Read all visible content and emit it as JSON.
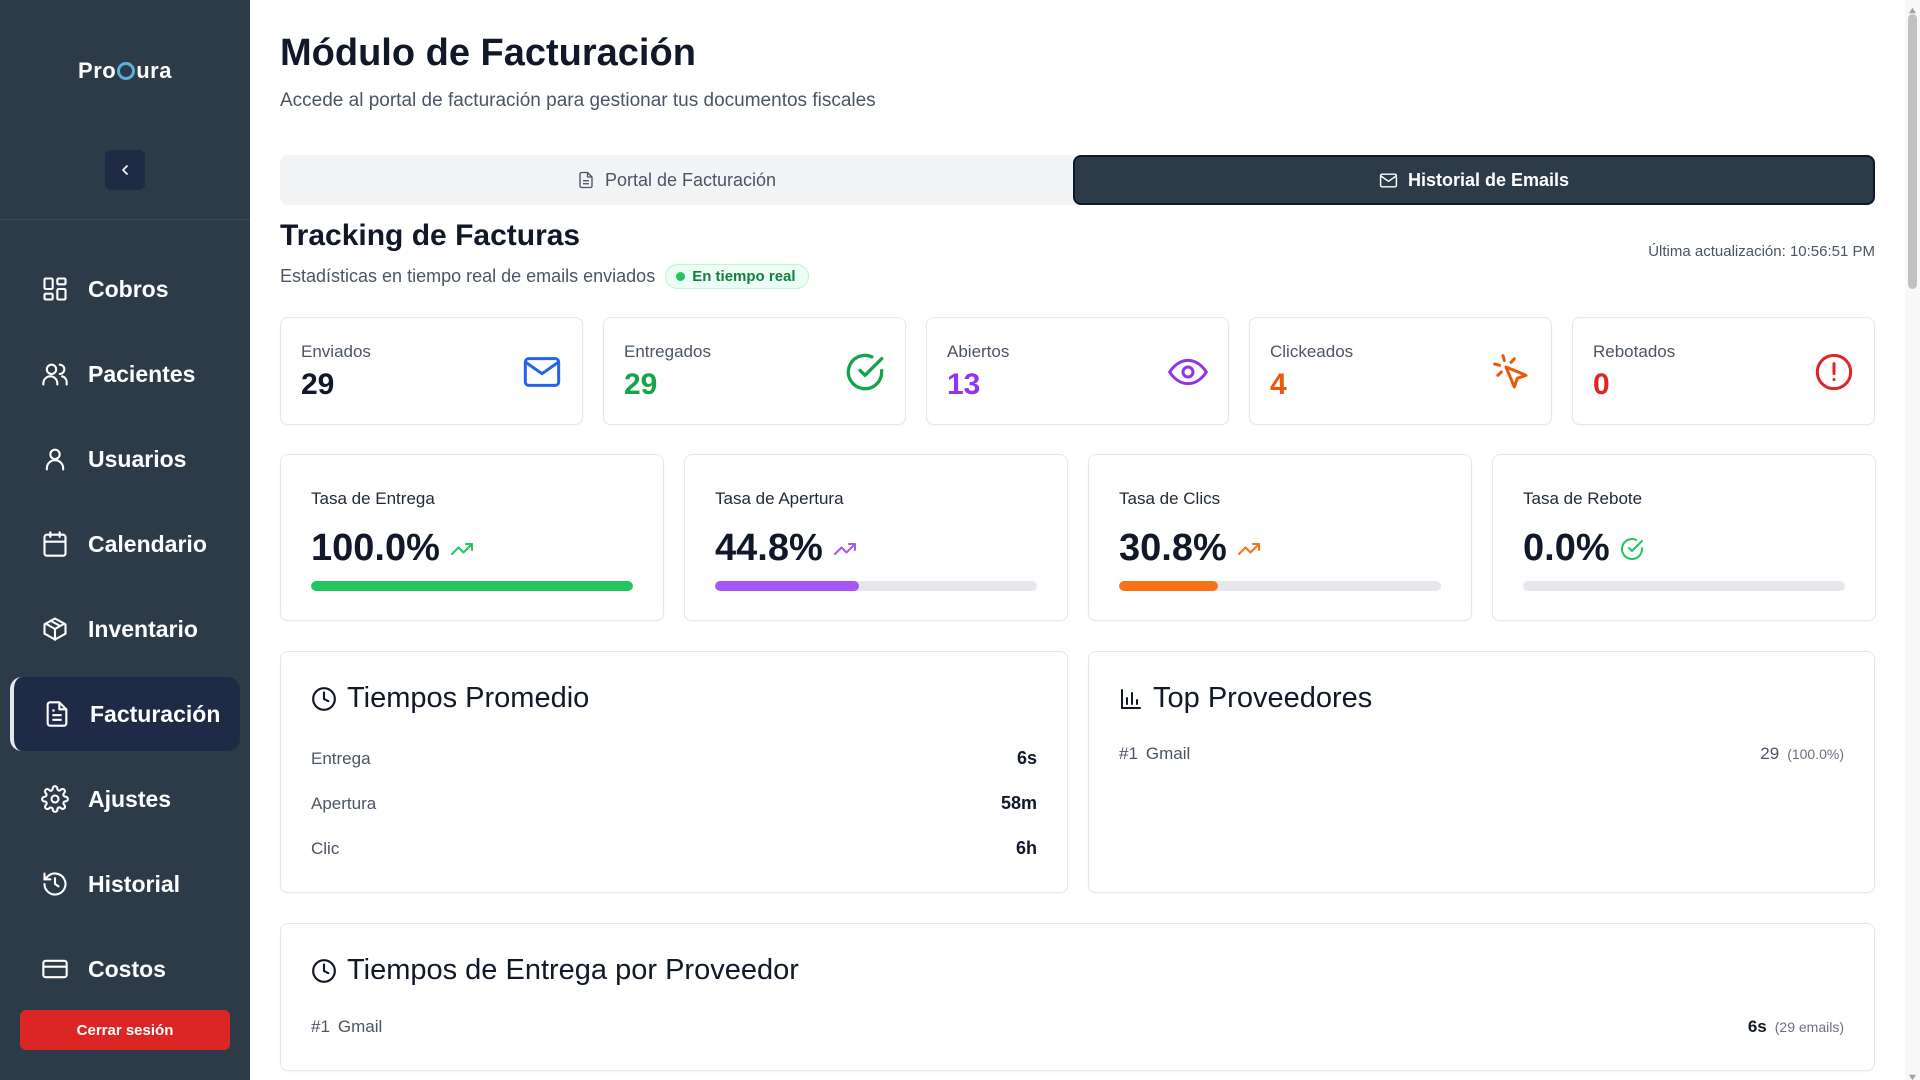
{
  "sidebar": {
    "logo_before": "Pro",
    "logo_after": "ura",
    "items": [
      {
        "label": "Cobros",
        "icon": "dashboard-icon"
      },
      {
        "label": "Pacientes",
        "icon": "users-icon"
      },
      {
        "label": "Usuarios",
        "icon": "user-icon"
      },
      {
        "label": "Calendario",
        "icon": "calendar-icon"
      },
      {
        "label": "Inventario",
        "icon": "box-icon"
      },
      {
        "label": "Facturación",
        "icon": "file-text-icon",
        "active": true
      },
      {
        "label": "Ajustes",
        "icon": "gear-icon"
      },
      {
        "label": "Historial",
        "icon": "history-icon"
      },
      {
        "label": "Costos",
        "icon": "credit-card-icon"
      }
    ],
    "logout_label": "Cerrar sesión"
  },
  "header": {
    "title": "Módulo de Facturación",
    "subtitle": "Accede al portal de facturación para gestionar tus documentos fiscales"
  },
  "tabs": [
    {
      "label": "Portal de Facturación",
      "active": false
    },
    {
      "label": "Historial de Emails",
      "active": true
    }
  ],
  "tracking": {
    "title": "Tracking de Facturas",
    "subtitle": "Estadísticas en tiempo real de emails enviados",
    "badge": "En tiempo real",
    "last_update": "Última actualización: 10:56:51 PM"
  },
  "stats": [
    {
      "label": "Enviados",
      "value": "29",
      "color": "#111827",
      "icon": "mail-icon",
      "icon_color": "#2563eb"
    },
    {
      "label": "Entregados",
      "value": "29",
      "color": "#16a34a",
      "icon": "check-circle-icon",
      "icon_color": "#16a34a"
    },
    {
      "label": "Abiertos",
      "value": "13",
      "color": "#9333ea",
      "icon": "eye-icon",
      "icon_color": "#9333ea"
    },
    {
      "label": "Clickeados",
      "value": "4",
      "color": "#ea580c",
      "icon": "pointer-click-icon",
      "icon_color": "#ea580c"
    },
    {
      "label": "Rebotados",
      "value": "0",
      "color": "#dc2626",
      "icon": "alert-circle-icon",
      "icon_color": "#dc2626"
    }
  ],
  "rates": [
    {
      "label": "Tasa de Entrega",
      "value": "100.0%",
      "fill_percent": 100,
      "color": "#22c55e",
      "icon": "trending-up-icon"
    },
    {
      "label": "Tasa de Apertura",
      "value": "44.8%",
      "fill_percent": 44.8,
      "color": "#a855f7",
      "icon": "trending-up-icon"
    },
    {
      "label": "Tasa de Clics",
      "value": "30.8%",
      "fill_percent": 30.8,
      "color": "#f97316",
      "icon": "trending-up-icon"
    },
    {
      "label": "Tasa de Rebote",
      "value": "0.0%",
      "fill_percent": 0,
      "color": "#22c55e",
      "icon": "check-circle-icon"
    }
  ],
  "avg_times": {
    "title": "Tiempos Promedio",
    "rows": [
      {
        "label": "Entrega",
        "value": "6s"
      },
      {
        "label": "Apertura",
        "value": "58m"
      },
      {
        "label": "Clic",
        "value": "6h"
      }
    ]
  },
  "top_providers": {
    "title": "Top Proveedores",
    "rows": [
      {
        "rank": "#1",
        "name": "Gmail",
        "count": "29",
        "percent": "(100.0%)"
      }
    ]
  },
  "delivery_by_provider": {
    "title": "Tiempos de Entrega por Proveedor",
    "rows": [
      {
        "rank": "#1",
        "name": "Gmail",
        "time": "6s",
        "emails": "(29 emails)"
      }
    ]
  }
}
